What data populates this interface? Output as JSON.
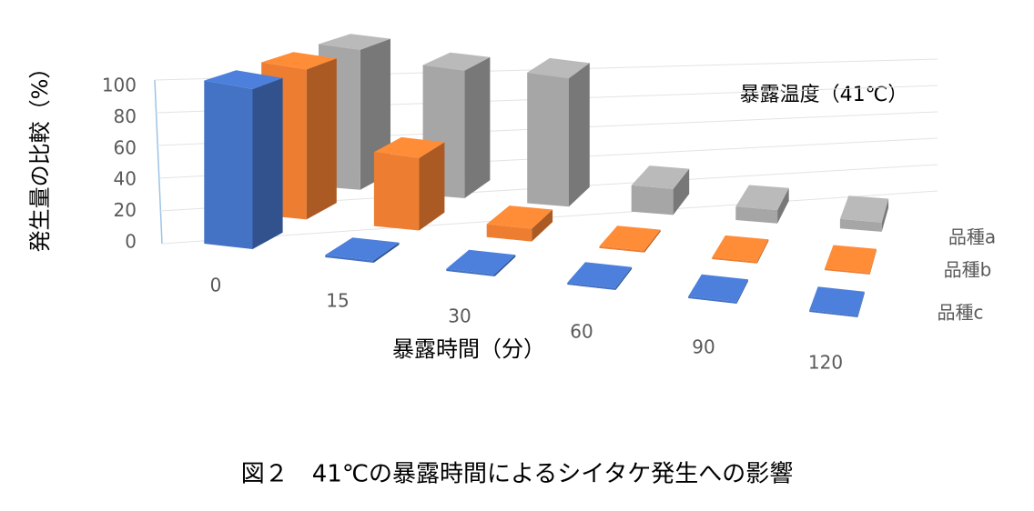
{
  "chart_data": {
    "type": "bar3d",
    "title": "図２　41℃の暴露時間によるシイタケ発生への影響",
    "annotation": "暴露温度（41℃）",
    "xlabel": "暴露時間（分）",
    "ylabel": "発生量の比較（%）",
    "categories": [
      "0",
      "15",
      "30",
      "60",
      "90",
      "120"
    ],
    "series": [
      {
        "name": "品種a",
        "color": "#a6a6a6",
        "values": [
          100,
          95,
          100,
          20,
          10,
          7
        ]
      },
      {
        "name": "品種b",
        "color": "#ed7d31",
        "values": [
          100,
          50,
          8,
          0,
          0,
          0
        ]
      },
      {
        "name": "品種c",
        "color": "#4472c4",
        "values": [
          100,
          0,
          0,
          0,
          0,
          0
        ]
      }
    ],
    "ylim": [
      0,
      100
    ],
    "yticks": [
      0,
      20,
      40,
      60,
      80,
      100
    ],
    "grid": true
  }
}
